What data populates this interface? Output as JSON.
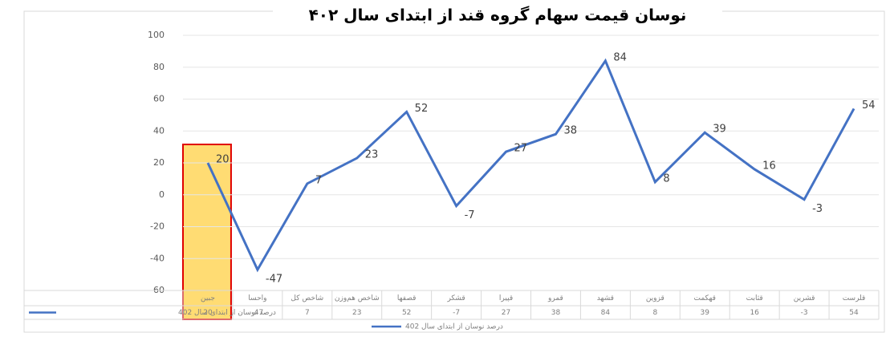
{
  "chart_data": {
    "type": "line",
    "title": "نوسان قیمت سهام گروه قند از ابتدای سال ۴۰۲",
    "categories": [
      "جبین",
      "واحسا",
      "شاخص کل",
      "شاخص هم‌وزن",
      "قصفها",
      "قشکر",
      "قپیرا",
      "قمرو",
      "قشهد",
      "قزوین",
      "قهکمت",
      "قثابت",
      "قشرین",
      "قلرست"
    ],
    "series": [
      {
        "name": "درصد نوسان از ابتدای سال 402",
        "color": "#4472c4",
        "values": [
          20,
          -47,
          7,
          23,
          52,
          -7,
          27,
          38,
          84,
          8,
          39,
          16,
          -3,
          54
        ]
      }
    ],
    "ylim": [
      -60,
      100
    ],
    "yticks": [
      -60,
      -40,
      -20,
      0,
      20,
      40,
      60,
      80,
      100
    ],
    "grid": true,
    "highlight_color": "#ffc000"
  }
}
